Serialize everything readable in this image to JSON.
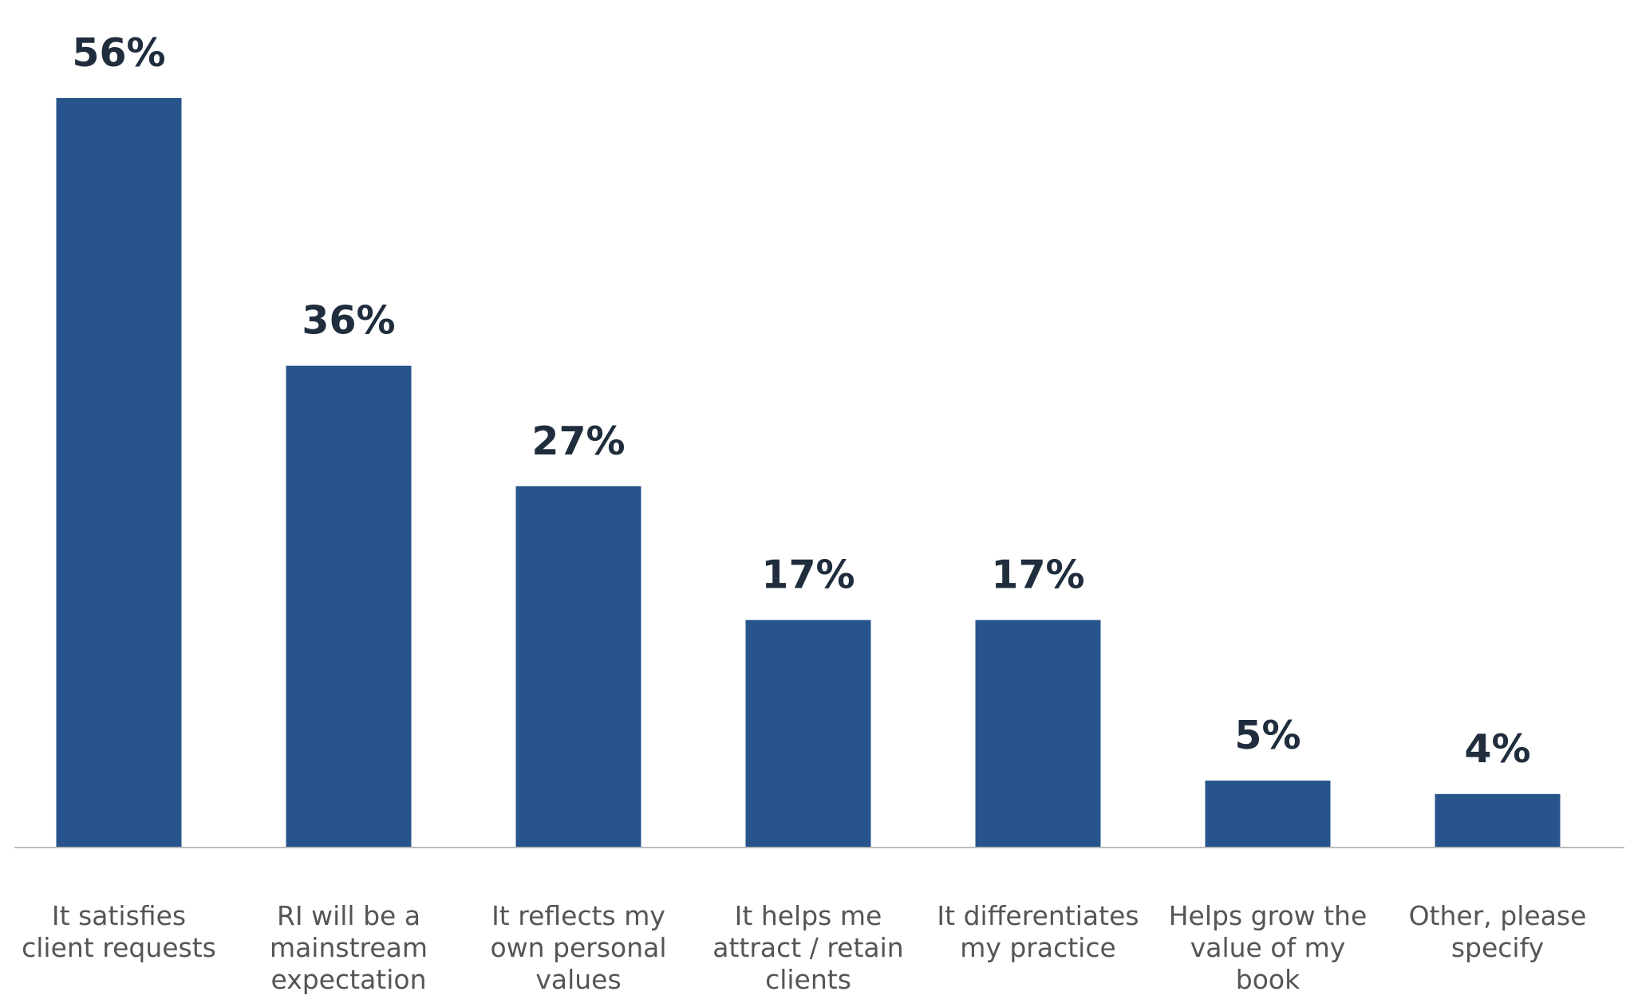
{
  "chart_data": {
    "type": "bar",
    "categories": [
      [
        "It satisfies",
        "client requests"
      ],
      [
        "RI will be a",
        "mainstream",
        "expectation"
      ],
      [
        "It reflects my",
        "own personal",
        "values"
      ],
      [
        "It helps me",
        "attract / retain",
        "clients"
      ],
      [
        "It differentiates",
        "my practice"
      ],
      [
        "Helps grow the",
        "value of my",
        "book"
      ],
      [
        "Other, please",
        "specify"
      ]
    ],
    "values": [
      56,
      36,
      27,
      17,
      17,
      5,
      4
    ],
    "value_labels": [
      "56%",
      "36%",
      "27%",
      "17%",
      "17%",
      "5%",
      "4%"
    ],
    "unit": "%",
    "ylim": [
      0,
      56
    ],
    "grid": false,
    "legend": "none",
    "colors": {
      "bar": "#27548d",
      "value_label": "#1f2d3d",
      "category_label": "#555555",
      "baseline": "#bbbbbb"
    }
  }
}
